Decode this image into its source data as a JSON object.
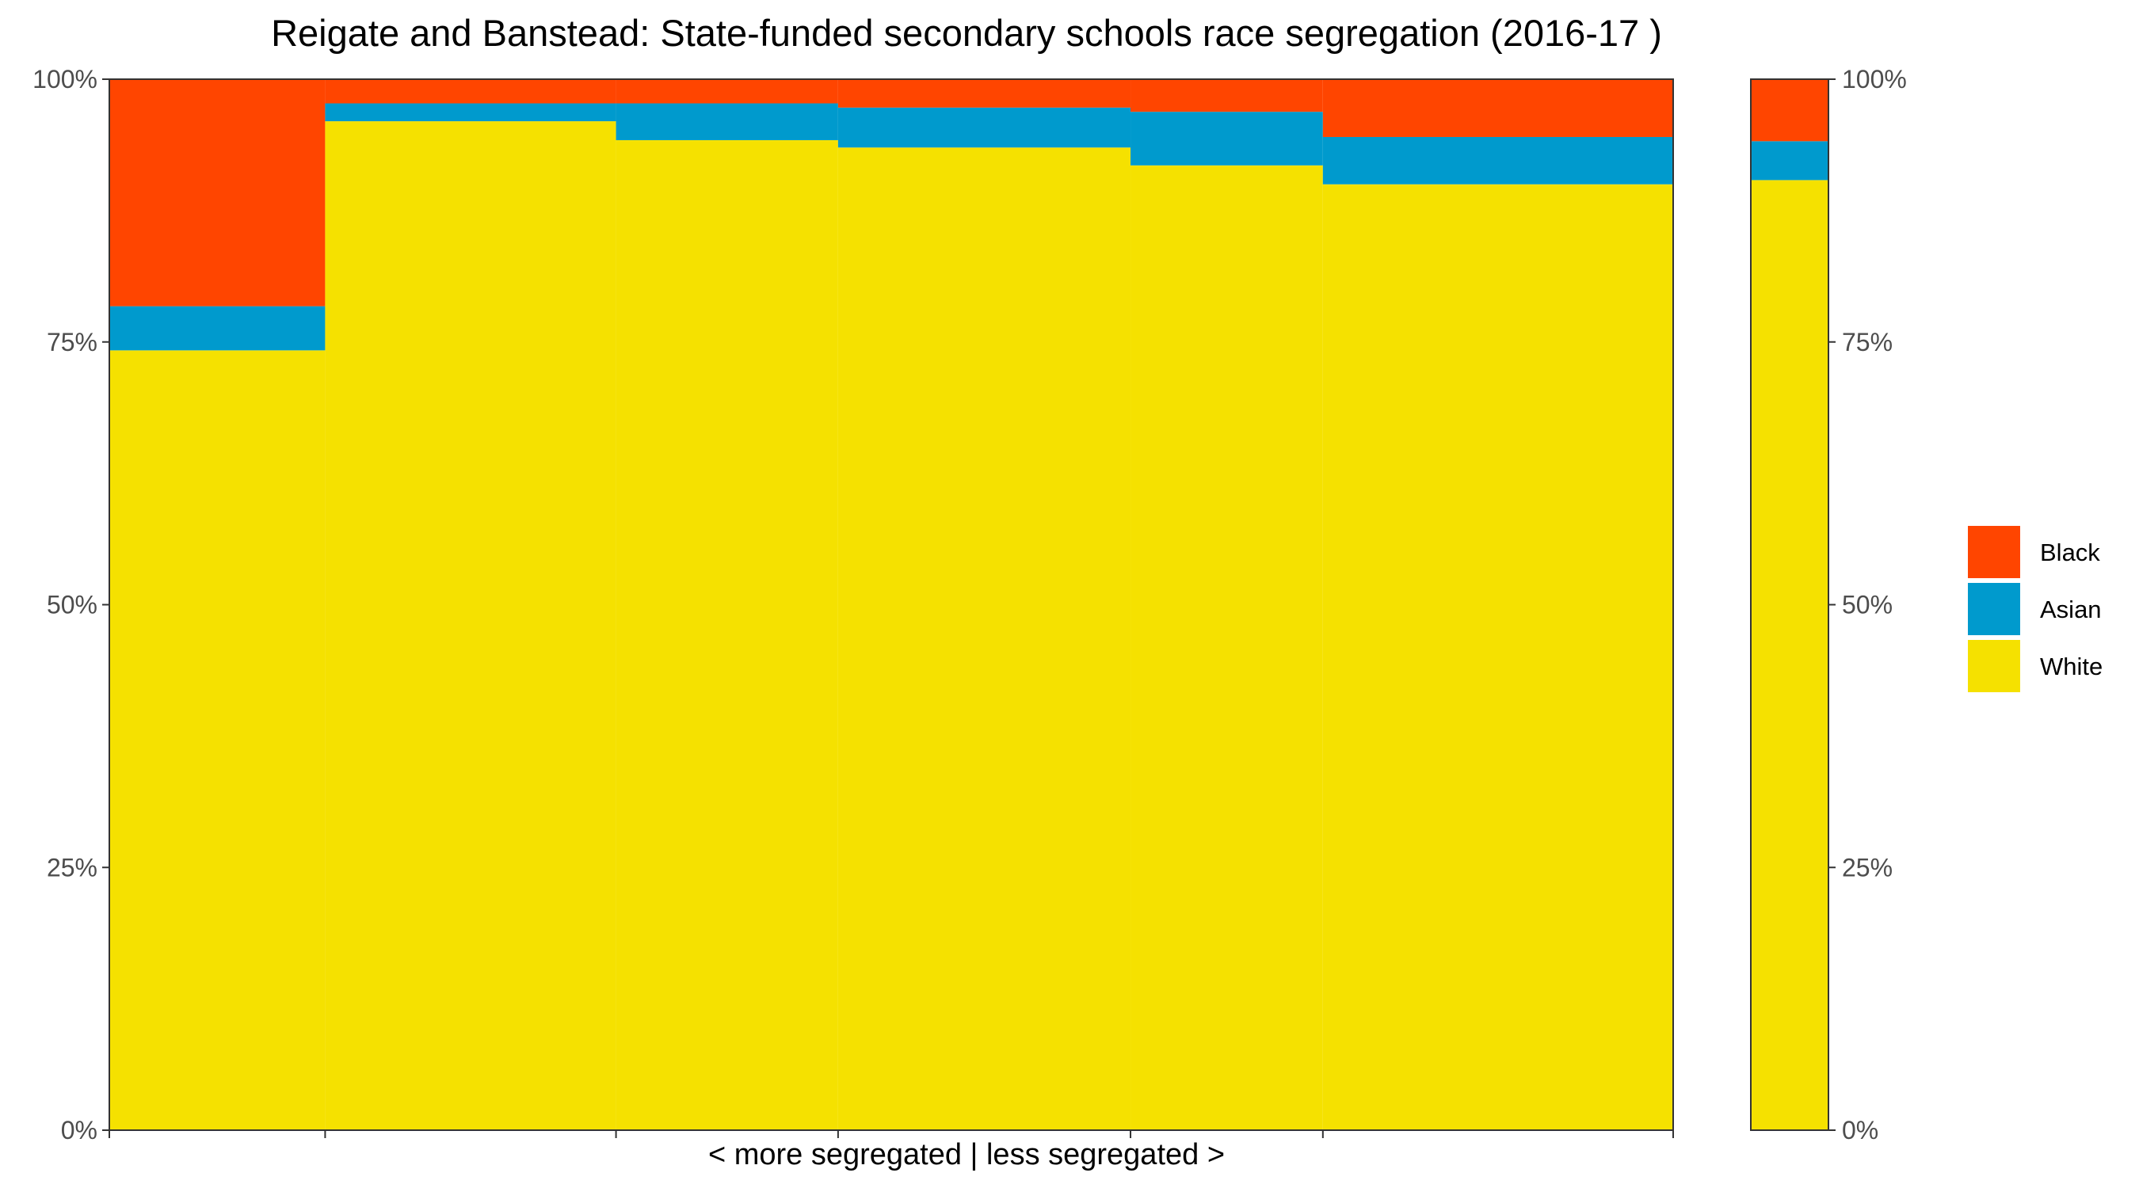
{
  "chart_data": {
    "type": "bar",
    "title": "Reigate and Banstead: State-funded secondary schools race segregation (2016-17 )",
    "xlabel": "< more segregated | less segregated >",
    "ylabel": "",
    "ylim": [
      0,
      1
    ],
    "y_tick_labels": [
      "0%",
      "25%",
      "50%",
      "75%",
      "100%"
    ],
    "y_tick_values": [
      0,
      0.25,
      0.5,
      0.75,
      1.0
    ],
    "secondary_y_axis": true,
    "grid": false,
    "legend_position": "right",
    "series_order_bottom_to_top": [
      "White",
      "Asian",
      "Black"
    ],
    "colors": {
      "Black": "#FF4500",
      "Asian": "#009ACD",
      "White": "#F5E100"
    },
    "legend": [
      {
        "name": "Black",
        "color": "#FF4500"
      },
      {
        "name": "Asian",
        "color": "#009ACD"
      },
      {
        "name": "White",
        "color": "#F5E100"
      }
    ],
    "schools": [
      {
        "cum_start": 0.0,
        "cum_end": 0.138,
        "White": 0.742,
        "Asian": 0.042,
        "Black": 0.216
      },
      {
        "cum_start": 0.138,
        "cum_end": 0.324,
        "White": 0.96,
        "Asian": 0.017,
        "Black": 0.023
      },
      {
        "cum_start": 0.324,
        "cum_end": 0.466,
        "White": 0.942,
        "Asian": 0.035,
        "Black": 0.023
      },
      {
        "cum_start": 0.466,
        "cum_end": 0.653,
        "White": 0.935,
        "Asian": 0.038,
        "Black": 0.027
      },
      {
        "cum_start": 0.653,
        "cum_end": 0.776,
        "White": 0.918,
        "Asian": 0.051,
        "Black": 0.031
      },
      {
        "cum_start": 0.776,
        "cum_end": 1.0,
        "White": 0.9,
        "Asian": 0.045,
        "Black": 0.055
      }
    ],
    "overall": {
      "White": 0.904,
      "Asian": 0.037,
      "Black": 0.059
    }
  }
}
